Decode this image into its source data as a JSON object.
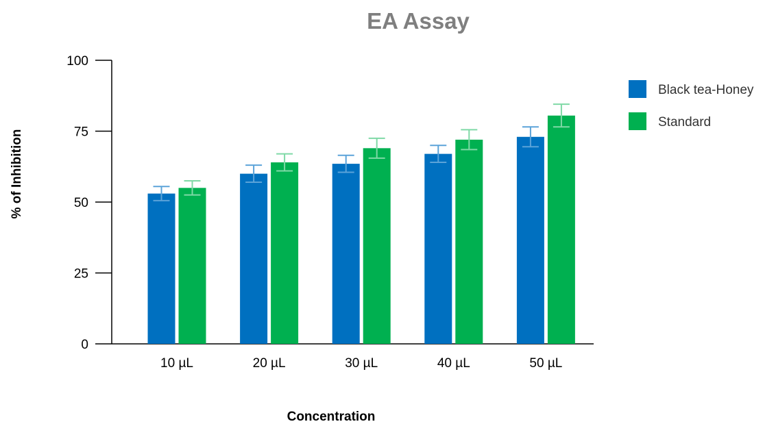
{
  "chart_data": {
    "type": "bar",
    "title": "EA Assay",
    "xlabel": "Concentration",
    "ylabel": "% of Inhibition",
    "categories": [
      "10 µL",
      "20 µL",
      "30 µL",
      "40 µL",
      "50 µL"
    ],
    "ylim": [
      0,
      100
    ],
    "yticks": [
      "0",
      "25",
      "50",
      "75",
      "100"
    ],
    "grid": false,
    "legend_position": "top-right",
    "series": [
      {
        "name": "Black tea-Honey",
        "color": "#0070c0",
        "error_color": "#5ba3d9",
        "values": [
          53,
          60,
          63.5,
          67,
          73
        ],
        "errors": [
          2.5,
          3,
          3,
          3,
          3.5
        ]
      },
      {
        "name": "Standard",
        "color": "#00b050",
        "error_color": "#7fd9a6",
        "values": [
          55,
          64,
          69,
          72,
          80.5
        ],
        "errors": [
          2.5,
          3,
          3.5,
          3.5,
          4
        ]
      }
    ]
  }
}
